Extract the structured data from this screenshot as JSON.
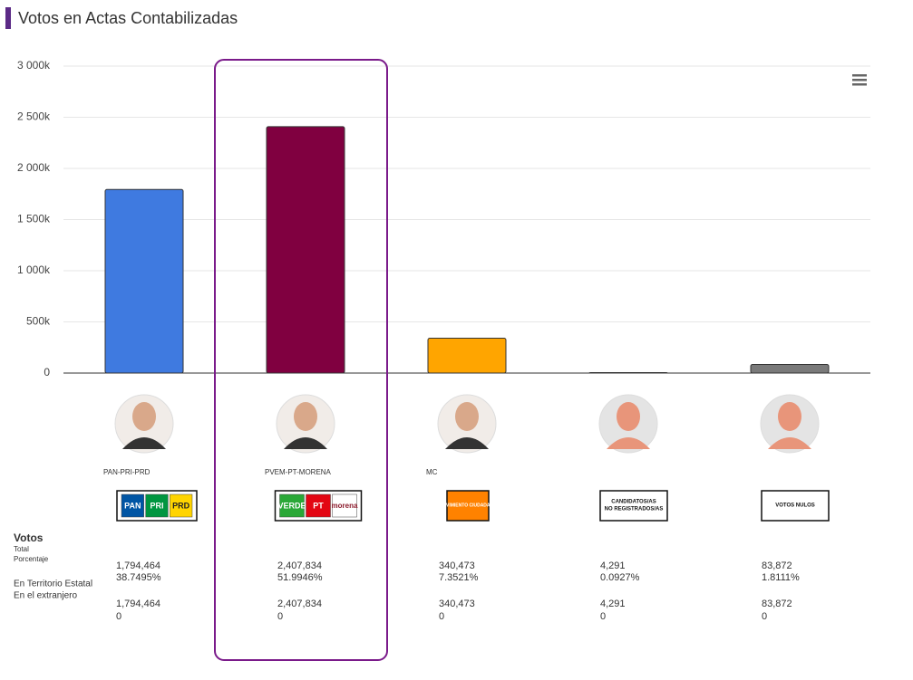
{
  "chart_data": {
    "type": "bar",
    "title": "Votos en Actas Contabilizadas",
    "categories": [
      "PAN-PRI-PRD",
      "PVEM-PT-MORENA",
      "MC",
      null,
      null
    ],
    "values": [
      1794464,
      2407834,
      340473,
      4291,
      83872
    ],
    "colors": [
      "#3f7ae0",
      "#800040",
      "#ffa500",
      "#7a7a7a",
      "#7a7a7a"
    ],
    "ylim": [
      0,
      3000000
    ],
    "yticks": [
      0,
      {
        "value": 500000,
        "label": "500k"
      },
      {
        "value": 1000000,
        "label": "1 000k"
      },
      {
        "value": 1500000,
        "label": "1 500k"
      },
      {
        "value": 2000000,
        "label": "2 000k"
      },
      {
        "value": 2500000,
        "label": "2 500k"
      },
      {
        "value": 3000000,
        "label": "3 000k"
      }
    ],
    "grid": true,
    "logo_texts": [
      [
        "PAN",
        "PRI",
        "PRD"
      ],
      [
        "VERDE",
        "PT",
        "morena"
      ],
      [
        "MOVIMIENTO CIUDADANO"
      ],
      [
        "CANDIDATOS/AS",
        "NO REGISTRADOS/AS"
      ],
      [
        "VOTOS NULOS"
      ]
    ],
    "value_labels": [
      "1,794,464",
      "2,407,834",
      "340,473",
      "4,291",
      "83,872"
    ],
    "table": {
      "heading": "Votos",
      "total_label": "Total",
      "percent_label": "Porcentaje",
      "territory_label": "En Territorio Estatal",
      "abroad_label": "En el extranjero",
      "percentages": [
        "38.7495%",
        "51.9946%",
        "7.3521%",
        "0.0927%",
        "1.8111%"
      ],
      "territory": [
        "1,794,464",
        "2,407,834",
        "340,473",
        "4,291",
        "83,872"
      ],
      "abroad": [
        "0",
        "0",
        "0",
        "0",
        "0"
      ]
    }
  }
}
